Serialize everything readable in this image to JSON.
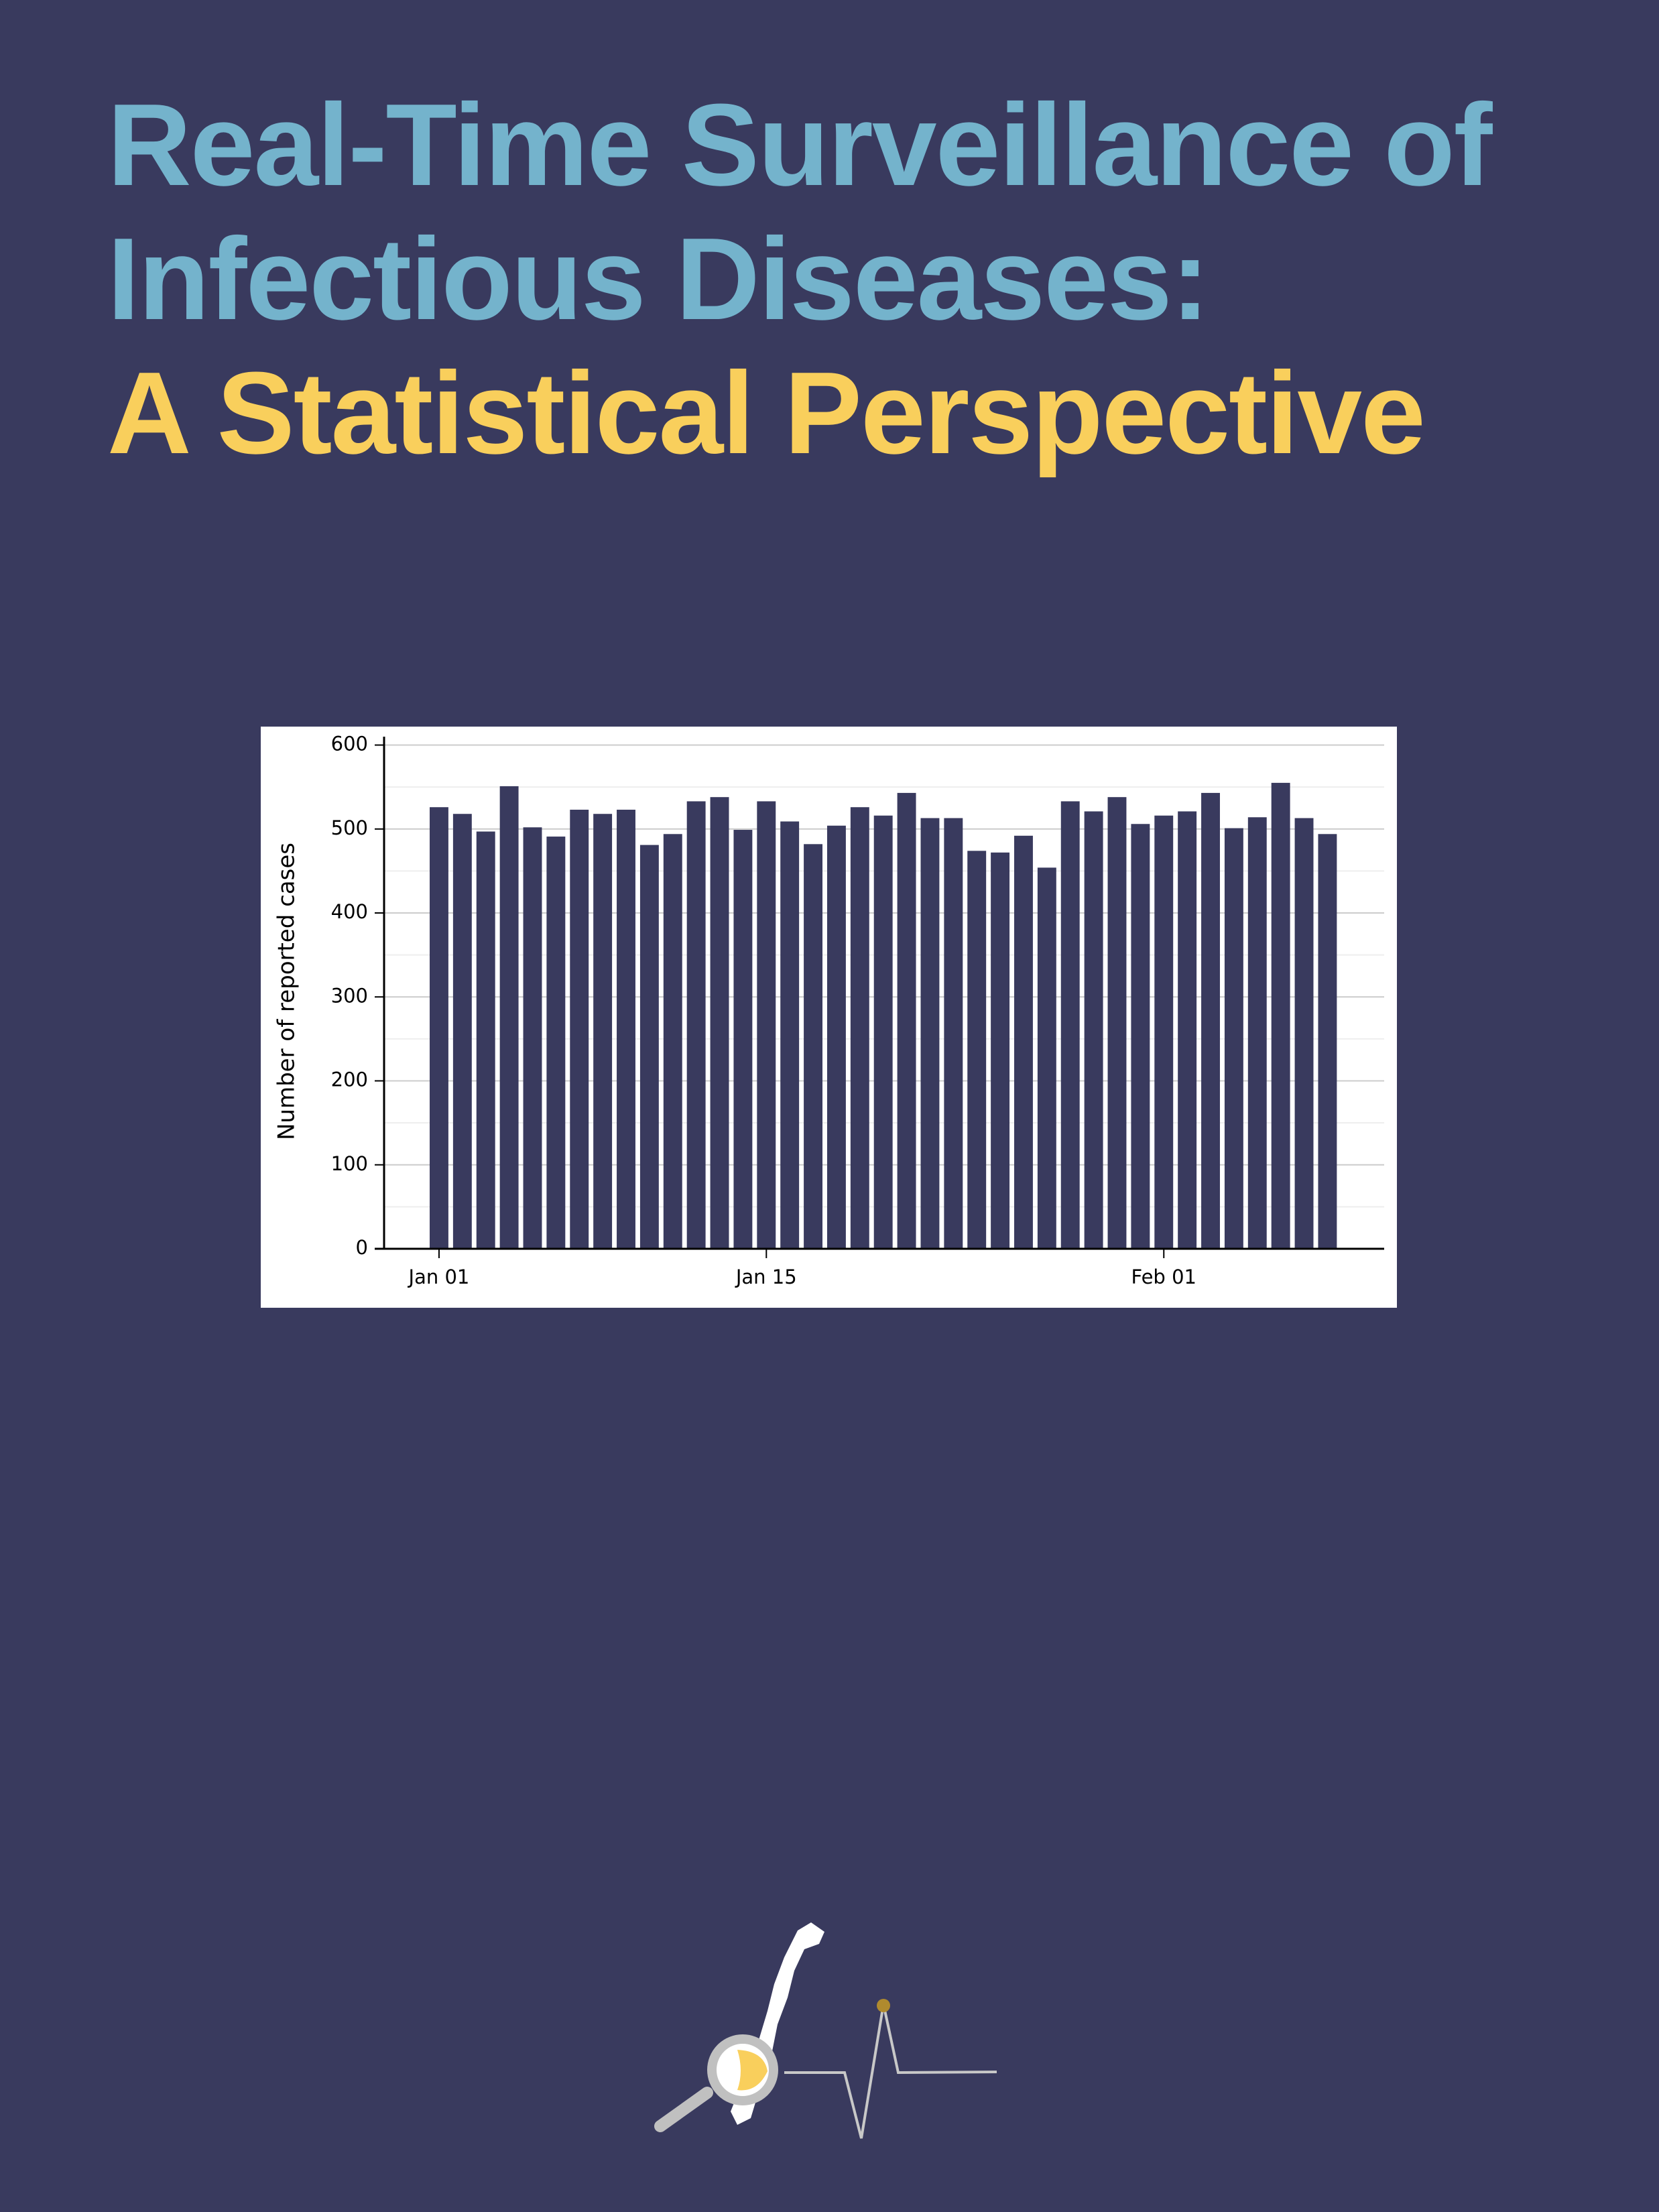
{
  "cover": {
    "title_lines": [
      "Real-Time Surveillance of",
      "Infectious Diseases:"
    ],
    "subtitle": "A Statistical Perspective"
  },
  "chart_data": {
    "type": "bar",
    "y_label": "Number of reported cases",
    "categories": [
      "Jan 01",
      null,
      null,
      null,
      null,
      null,
      null,
      null,
      null,
      null,
      null,
      null,
      null,
      null,
      "Jan 15",
      null,
      null,
      null,
      null,
      null,
      null,
      null,
      null,
      null,
      null,
      null,
      null,
      null,
      null,
      null,
      null,
      "Feb 01",
      null,
      null,
      null,
      null,
      null,
      null,
      null
    ],
    "values": [
      526,
      518,
      497,
      551,
      502,
      491,
      523,
      518,
      523,
      481,
      494,
      533,
      538,
      499,
      533,
      509,
      482,
      504,
      526,
      516,
      543,
      513,
      513,
      474,
      472,
      492,
      454,
      533,
      521,
      538,
      506,
      516,
      521,
      543,
      501,
      514,
      555,
      513,
      494
    ],
    "color": "#393a5e",
    "ylim": [
      0,
      610
    ],
    "yticks": [
      0,
      100,
      200,
      300,
      400,
      500,
      600
    ],
    "grid": true
  }
}
